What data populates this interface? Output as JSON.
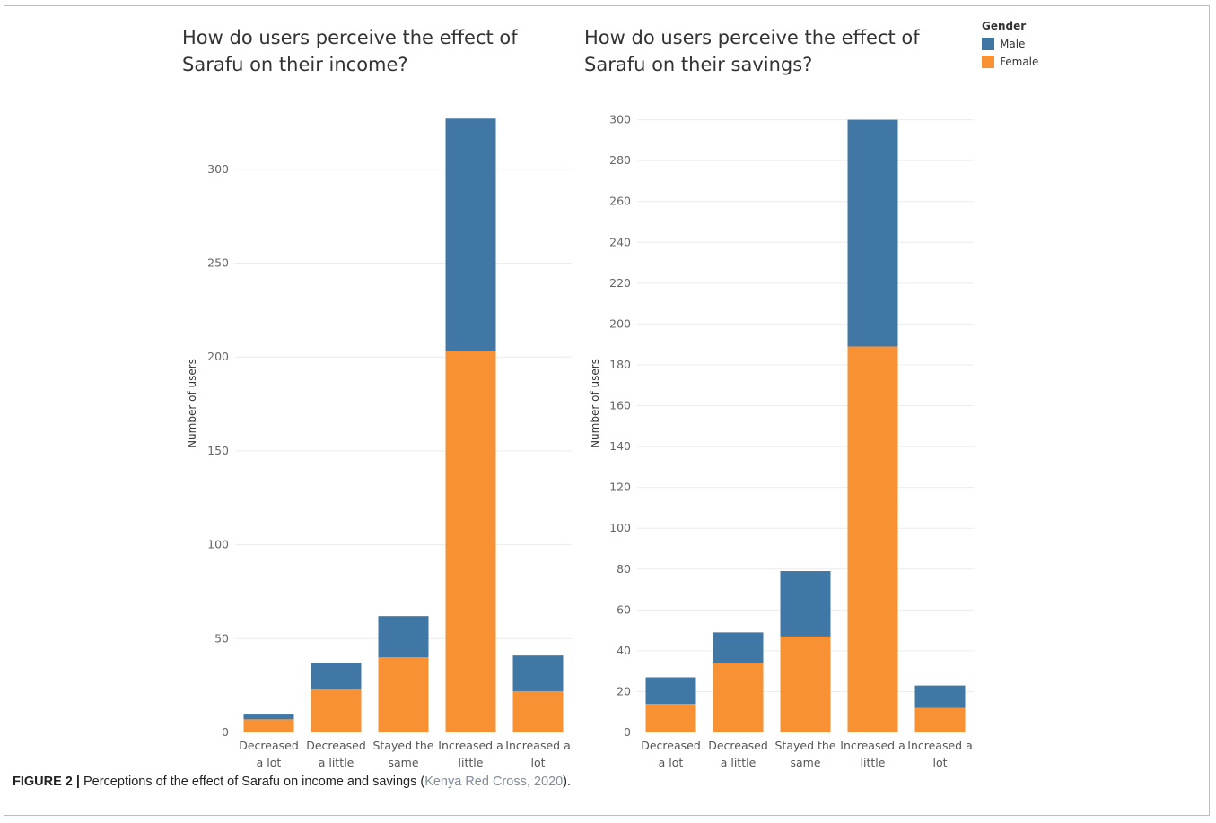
{
  "legend": {
    "title": "Gender",
    "items": [
      {
        "name": "Male",
        "color": "#4177a4"
      },
      {
        "name": "Female",
        "color": "#f89134"
      }
    ]
  },
  "chart_data": [
    {
      "type": "bar",
      "stacked": true,
      "title": "How do users perceive the effect of Sarafu on their income?",
      "ylabel": "Number of users",
      "xlabel": "",
      "ylim": [
        0,
        335
      ],
      "yticks": [
        0,
        50,
        100,
        150,
        200,
        250,
        300
      ],
      "grid": true,
      "categories": [
        [
          "Decreased",
          "a lot"
        ],
        [
          "Decreased",
          "a little"
        ],
        [
          "Stayed the",
          "same"
        ],
        [
          "Increased a",
          "little"
        ],
        [
          "Increased a",
          "lot"
        ]
      ],
      "series": [
        {
          "name": "Female",
          "values": [
            7,
            23,
            40,
            203,
            22
          ]
        },
        {
          "name": "Male",
          "values": [
            3,
            14,
            22,
            124,
            19
          ]
        }
      ]
    },
    {
      "type": "bar",
      "stacked": true,
      "title": "How do users perceive the effect of Sarafu on their savings?",
      "ylabel": "Number of users",
      "xlabel": "",
      "ylim": [
        0,
        305
      ],
      "yticks": [
        0,
        20,
        40,
        60,
        80,
        100,
        120,
        140,
        160,
        180,
        200,
        220,
        240,
        260,
        280,
        300
      ],
      "grid": true,
      "categories": [
        [
          "Decreased",
          "a lot"
        ],
        [
          "Decreased",
          "a little"
        ],
        [
          "Stayed the",
          "same"
        ],
        [
          "Increased a",
          "little"
        ],
        [
          "Increased a",
          "lot"
        ]
      ],
      "series": [
        {
          "name": "Female",
          "values": [
            14,
            34,
            47,
            189,
            12
          ]
        },
        {
          "name": "Male",
          "values": [
            13,
            15,
            32,
            111,
            11
          ]
        }
      ]
    }
  ],
  "caption": {
    "figure_label": "FIGURE 2 |",
    "text": " Perceptions of the effect of Sarafu on income and savings (",
    "reference": "Kenya Red Cross, 2020",
    "end": ")."
  }
}
